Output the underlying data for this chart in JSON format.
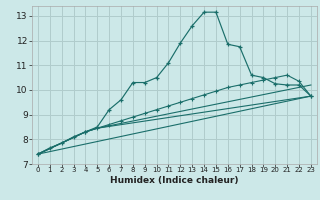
{
  "xlabel": "Humidex (Indice chaleur)",
  "background_color": "#cce8e8",
  "grid_color": "#b0cccc",
  "line_color": "#1a6e6a",
  "xlim": [
    -0.5,
    23.5
  ],
  "ylim": [
    7,
    13.4
  ],
  "xticks": [
    0,
    1,
    2,
    3,
    4,
    5,
    6,
    7,
    8,
    9,
    10,
    11,
    12,
    13,
    14,
    15,
    16,
    17,
    18,
    19,
    20,
    21,
    22,
    23
  ],
  "yticks": [
    7,
    8,
    9,
    10,
    11,
    12,
    13
  ],
  "series1_x": [
    0,
    1,
    2,
    3,
    4,
    5,
    6,
    7,
    8,
    9,
    10,
    11,
    12,
    13,
    14,
    15,
    16,
    17,
    18,
    19,
    20,
    21,
    22,
    23
  ],
  "series1_y": [
    7.4,
    7.65,
    7.85,
    8.1,
    8.3,
    8.5,
    9.2,
    9.6,
    10.3,
    10.3,
    10.5,
    11.1,
    11.9,
    12.6,
    13.15,
    13.15,
    11.85,
    11.75,
    10.6,
    10.5,
    10.25,
    10.2,
    10.2,
    9.75
  ],
  "series2_x": [
    0,
    4,
    5,
    6,
    7,
    8,
    9,
    10,
    11,
    12,
    13,
    14,
    15,
    16,
    17,
    18,
    19,
    20,
    21,
    22,
    23
  ],
  "series2_y": [
    7.4,
    8.3,
    8.45,
    8.6,
    8.75,
    8.9,
    9.05,
    9.2,
    9.35,
    9.5,
    9.65,
    9.8,
    9.95,
    10.1,
    10.2,
    10.3,
    10.4,
    10.5,
    10.6,
    10.35,
    9.75
  ],
  "series3_x": [
    0,
    4,
    5,
    23
  ],
  "series3_y": [
    7.4,
    8.3,
    8.45,
    10.2
  ],
  "series4_x": [
    0,
    4,
    5,
    23
  ],
  "series4_y": [
    7.4,
    8.3,
    8.45,
    9.75
  ],
  "series5_x": [
    0,
    23
  ],
  "series5_y": [
    7.4,
    9.75
  ]
}
